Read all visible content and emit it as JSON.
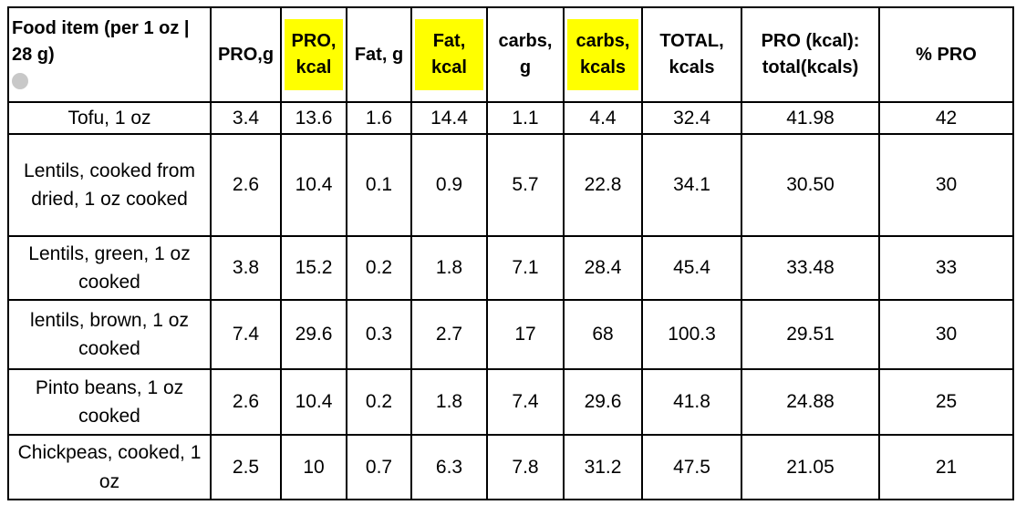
{
  "table": {
    "headers": [
      "Food item (per 1 oz | 28 g)",
      "PRO,g",
      "PRO, kcal",
      "Fat, g",
      "Fat, kcal",
      "carbs, g",
      "carbs, kcals",
      "TOTAL, kcals",
      "PRO (kcal): total(kcals)",
      "% PRO"
    ],
    "rows": [
      [
        "Tofu, 1 oz",
        "3.4",
        "13.6",
        "1.6",
        "14.4",
        "1.1",
        "4.4",
        "32.4",
        "41.98",
        "42"
      ],
      [
        "Lentils, cooked from dried, 1 oz cooked",
        "2.6",
        "10.4",
        "0.1",
        "0.9",
        "5.7",
        "22.8",
        "34.1",
        "30.50",
        "30"
      ],
      [
        "Lentils, green, 1 oz cooked",
        "3.8",
        "15.2",
        "0.2",
        "1.8",
        "7.1",
        "28.4",
        "45.4",
        "33.48",
        "33"
      ],
      [
        "lentils, brown, 1 oz cooked",
        "7.4",
        "29.6",
        "0.3",
        "2.7",
        "17",
        "68",
        "100.3",
        "29.51",
        "30"
      ],
      [
        "Pinto beans, 1 oz cooked",
        "2.6",
        "10.4",
        "0.2",
        "1.8",
        "7.4",
        "29.6",
        "41.8",
        "24.88",
        "25"
      ],
      [
        "Chickpeas, cooked, 1 oz",
        "2.5",
        "10",
        "0.7",
        "6.3",
        "7.8",
        "31.2",
        "47.5",
        "21.05",
        "21"
      ]
    ]
  }
}
